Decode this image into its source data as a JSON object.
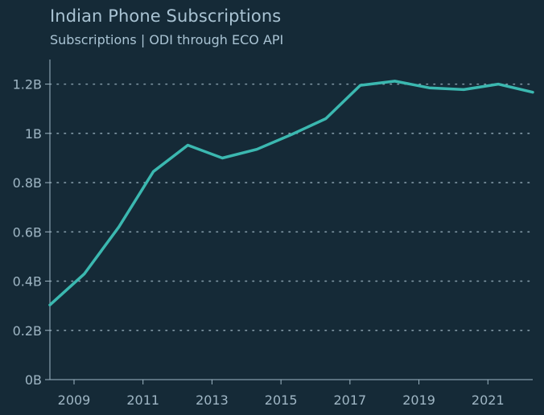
{
  "chart_data": {
    "type": "line",
    "title": "Indian Phone Subscriptions",
    "subtitle": "Subscriptions | ODI through ECO API",
    "xlabel": "",
    "ylabel": "",
    "ylim": [
      0,
      1300000000
    ],
    "xlim": [
      2008.3,
      2022.3
    ],
    "xticks": [
      2009,
      2011,
      2013,
      2015,
      2017,
      2019,
      2021
    ],
    "yticks": [
      0,
      200000000,
      400000000,
      600000000,
      800000000,
      1000000000,
      1200000000
    ],
    "ytick_labels": [
      "0B",
      "0.2B",
      "0.4B",
      "0.6B",
      "0.8B",
      "1B",
      "1.2B"
    ],
    "grid": "horizontal dotted",
    "series": [
      {
        "color": "#3bb8b0",
        "points": [
          {
            "x": 2008.3,
            "y": 303000000
          },
          {
            "x": 2009.3,
            "y": 430000000
          },
          {
            "x": 2010.3,
            "y": 620000000
          },
          {
            "x": 2011.3,
            "y": 845000000
          },
          {
            "x": 2012.3,
            "y": 952000000
          },
          {
            "x": 2013.3,
            "y": 900000000
          },
          {
            "x": 2014.3,
            "y": 935000000
          },
          {
            "x": 2015.3,
            "y": 995000000
          },
          {
            "x": 2016.3,
            "y": 1060000000
          },
          {
            "x": 2017.3,
            "y": 1195000000
          },
          {
            "x": 2018.3,
            "y": 1212000000
          },
          {
            "x": 2019.3,
            "y": 1185000000
          },
          {
            "x": 2020.3,
            "y": 1178000000
          },
          {
            "x": 2021.3,
            "y": 1200000000
          },
          {
            "x": 2022.3,
            "y": 1167000000
          }
        ]
      }
    ]
  },
  "colors": {
    "background": "#152a37",
    "text": "#a9c3d3",
    "tick": "#9fb6c4",
    "grid": "#9fb6c4",
    "axis": "#9fb6c4",
    "line": "#3bb8b0"
  }
}
